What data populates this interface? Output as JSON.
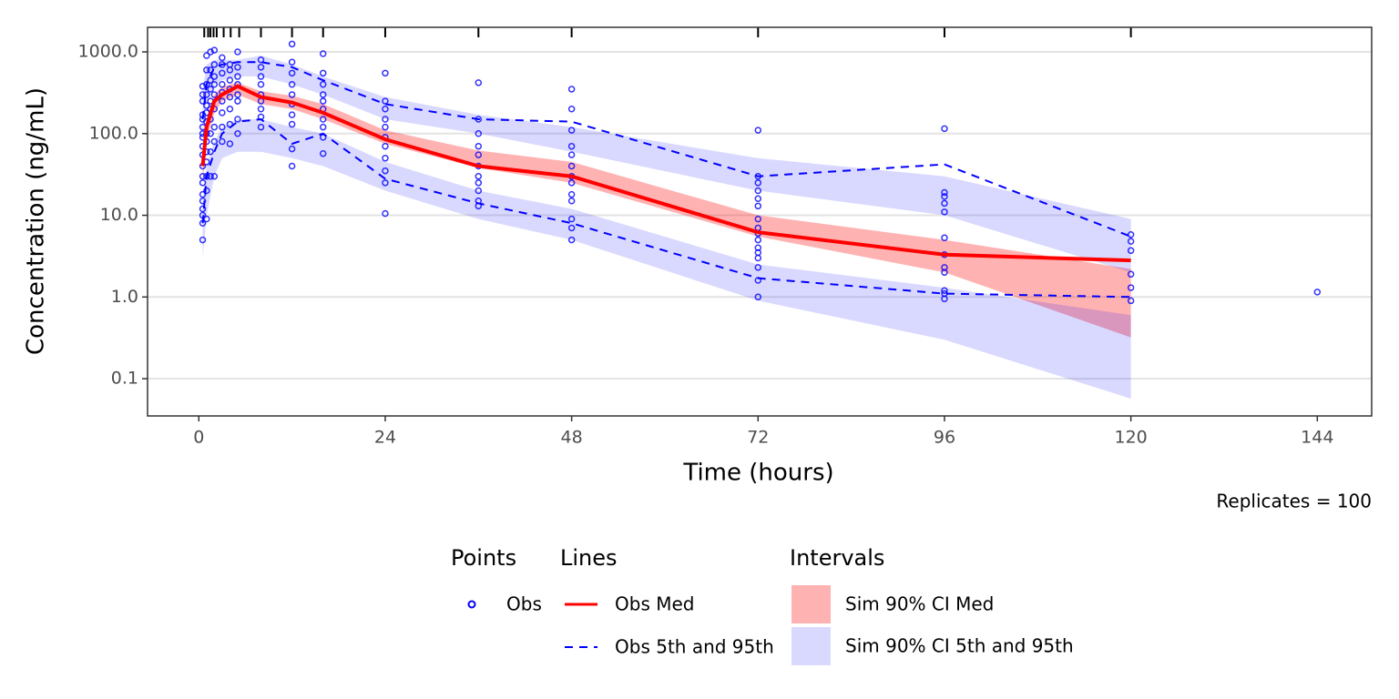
{
  "chart_data": {
    "type": "line",
    "x_label": "Time (hours)",
    "y_label": "Concentration (ng/mL)",
    "caption": "Replicates = 100",
    "log_y": true,
    "grid": true,
    "xlim": [
      -6.6,
      151
    ],
    "xticks": [
      0,
      24,
      48,
      72,
      96,
      120,
      144
    ],
    "ylim": [
      0.035,
      2000
    ],
    "yticks": [
      0.1,
      {
        "value": 1,
        "label": "1.0"
      },
      {
        "value": 10,
        "label": "10.0"
      },
      {
        "value": 100,
        "label": "100.0"
      },
      {
        "value": 1000,
        "label": "1000.0"
      }
    ],
    "rug": [
      0.7,
      1.2,
      1.5,
      1.9,
      2.3,
      3.2,
      4.1,
      5.2,
      8,
      12,
      16,
      24,
      36,
      48,
      72,
      96,
      120
    ],
    "points": {
      "title": "Points",
      "series": [
        {
          "name": "Obs",
          "color": "#0000ff",
          "x": [
            0.5,
            1,
            1.5,
            2,
            3,
            4,
            5,
            8,
            12,
            16,
            24,
            36,
            48,
            72,
            96,
            120,
            144
          ],
          "values": [
            [
              5,
              8,
              10,
              12,
              15,
              18,
              25,
              30,
              40,
              55,
              70,
              90,
              100,
              120,
              150,
              170,
              250,
              300,
              380
            ],
            [
              9,
              20,
              30,
              45,
              60,
              80,
              100,
              140,
              180,
              220,
              300,
              400,
              600,
              900
            ],
            [
              30,
              60,
              100,
              150,
              200,
              250,
              350,
              450,
              600,
              1000
            ],
            [
              30,
              80,
              120,
              200,
              300,
              400,
              500,
              700,
              1050
            ],
            [
              80,
              120,
              180,
              250,
              320,
              400,
              550,
              700,
              850
            ],
            [
              75,
              130,
              200,
              280,
              350,
              450,
              600,
              700
            ],
            [
              100,
              150,
              250,
              300,
              400,
              500,
              650,
              1000
            ],
            [
              120,
              160,
              200,
              250,
              300,
              400,
              500,
              650,
              800
            ],
            [
              40,
              65,
              130,
              170,
              230,
              300,
              400,
              550,
              750,
              1250
            ],
            [
              57,
              90,
              120,
              150,
              200,
              250,
              300,
              400,
              550,
              950
            ],
            [
              10.5,
              25,
              35,
              50,
              70,
              90,
              120,
              150,
              200,
              250,
              550
            ],
            [
              13,
              15,
              20,
              25,
              30,
              40,
              55,
              70,
              100,
              150,
              420
            ],
            [
              5,
              7,
              9,
              15,
              18,
              25,
              30,
              40,
              55,
              70,
              110,
              200,
              350
            ],
            [
              1.0,
              1.6,
              2.3,
              3,
              3.5,
              4,
              5,
              6,
              7,
              9,
              13,
              16,
              20,
              25,
              30,
              110
            ],
            [
              0.95,
              1.1,
              1.2,
              2,
              2.3,
              3.3,
              5.3,
              11,
              14,
              17,
              19,
              115
            ],
            [
              0.9,
              1.3,
              1.9,
              3.7,
              4.8,
              5.8
            ],
            [
              1.15
            ]
          ]
        }
      ]
    },
    "lines": {
      "title": "Lines",
      "x": [
        0.5,
        1,
        2,
        3,
        5,
        8,
        12,
        16,
        24,
        36,
        48,
        72,
        96,
        120
      ],
      "series": [
        {
          "name": "Obs Med",
          "color": "#ff0000",
          "dashed": false,
          "values": [
            [
              40,
              120,
              250,
              300,
              380,
              280,
              240,
              180,
              85,
              40,
              30,
              6.2,
              3.3,
              2.8
            ]
          ]
        },
        {
          "name": "Obs 5th and 95th",
          "color": "#0000ff",
          "dashed": true,
          "values": [
            [
              8,
              30,
              60,
              100,
              140,
              150,
              75,
              100,
              28,
              14,
              8,
              1.7,
              1.1,
              1.0
            ],
            [
              150,
              400,
              650,
              700,
              750,
              750,
              650,
              450,
              230,
              150,
              140,
              30,
              42,
              5.5
            ]
          ]
        }
      ]
    },
    "intervals": {
      "title": "Intervals",
      "x": [
        0.5,
        1,
        2,
        3,
        5,
        8,
        12,
        16,
        24,
        36,
        48,
        72,
        96,
        120
      ],
      "series": [
        {
          "name": "Sim 90% CI Med",
          "color": "#ff0000",
          "bands": [
            {
              "low": [
                25,
                80,
                180,
                250,
                300,
                230,
                200,
                150,
                75,
                38,
                25,
                5.5,
                2,
                0.32
              ],
              "high": [
                60,
                160,
                300,
                380,
                420,
                330,
                290,
                230,
                110,
                62,
                45,
                10,
                5,
                2.2
              ]
            }
          ]
        },
        {
          "name": "Sim 90% CI 5th and 95th",
          "color": "#0000ff",
          "bands": [
            {
              "low": [
                3,
                10,
                30,
                50,
                60,
                60,
                50,
                40,
                20,
                9,
                5,
                0.9,
                0.3,
                0.057
              ],
              "high": [
                15,
                40,
                80,
                120,
                150,
                150,
                120,
                100,
                45,
                20,
                12,
                2.5,
                1.3,
                0.6
              ]
            },
            {
              "low": [
                100,
                250,
                400,
                450,
                500,
                500,
                400,
                300,
                150,
                100,
                60,
                20,
                10,
                2
              ],
              "high": [
                350,
                700,
                800,
                800,
                800,
                900,
                700,
                500,
                280,
                170,
                120,
                50,
                30,
                9
              ]
            }
          ]
        }
      ]
    }
  }
}
